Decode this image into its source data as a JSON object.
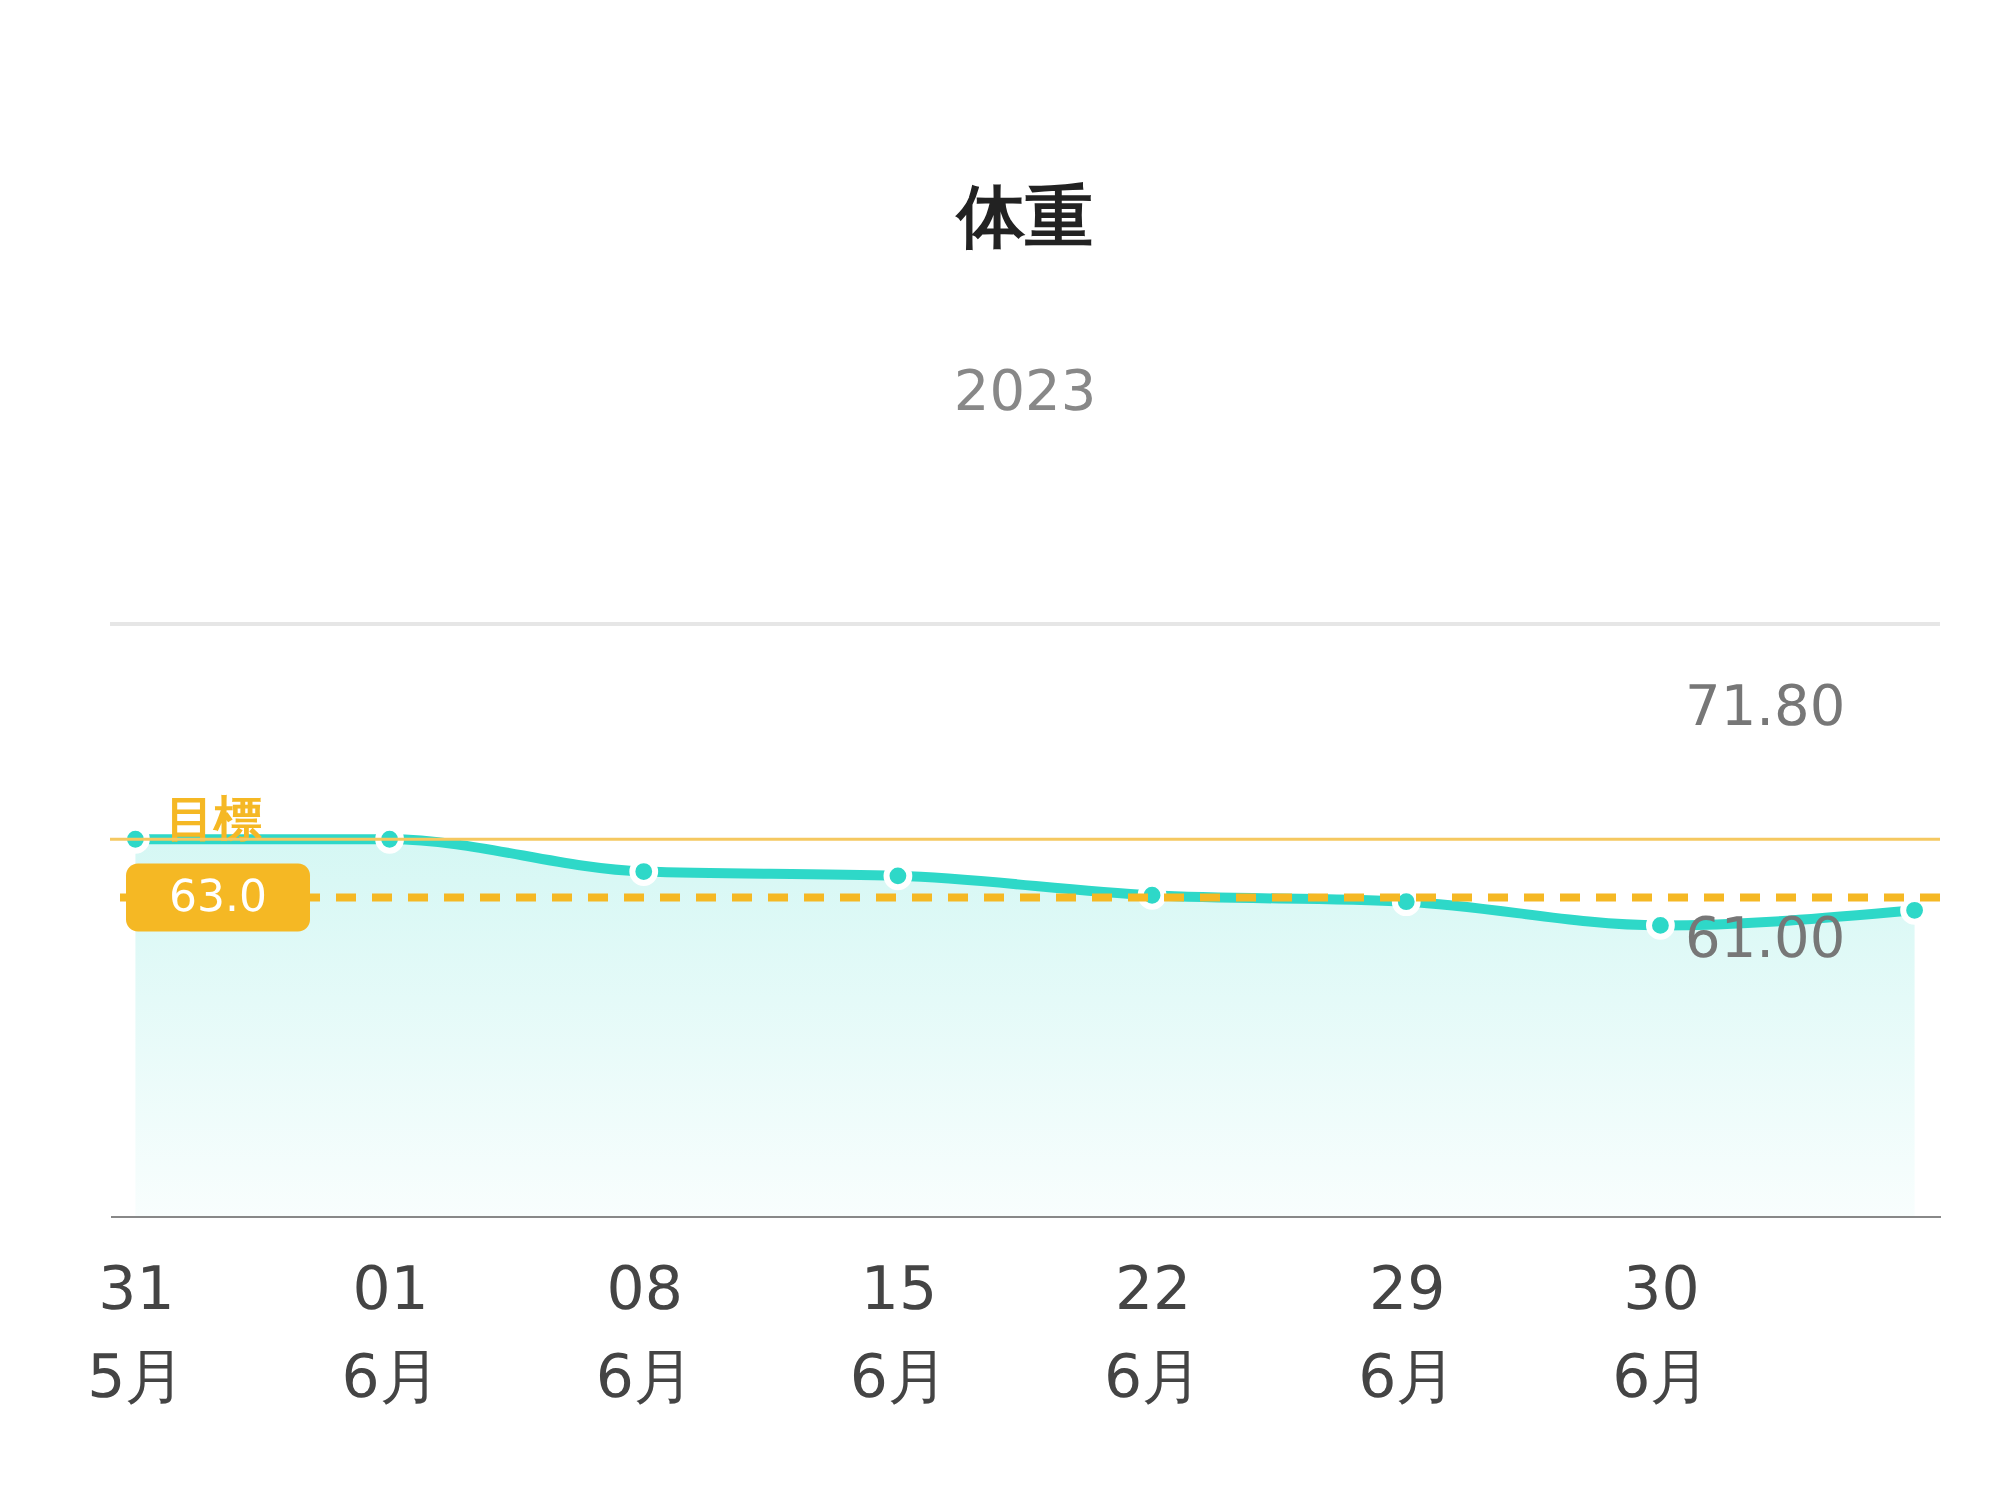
{
  "chart_data": {
    "type": "area",
    "title": "体重",
    "subtitle": "2023",
    "categories": [
      "31\n5月",
      "01\n6月",
      "08\n6月",
      "15\n6月",
      "22\n6月",
      "29\n6月",
      "30\n6月",
      null
    ],
    "series": [
      {
        "color": "#2ed8c8",
        "values": [
          65.7,
          65.7,
          64.2,
          64.0,
          63.1,
          62.8,
          61.7,
          62.4
        ]
      }
    ],
    "ylim": [
      48.2,
      75.7
    ],
    "yticks": [
      {
        "value": 71.8,
        "label": "71.80"
      },
      {
        "value": 61.0,
        "label": "61.00"
      }
    ],
    "ref_lines": [
      {
        "axis": "y",
        "value": 63.0,
        "label": "目標",
        "color": "#f5b824",
        "line_style": "dashed"
      },
      {
        "axis": "y",
        "value": 65.7,
        "label": null,
        "color": "#f5c860",
        "line_style": "solid"
      }
    ],
    "annotations": [
      "63.0"
    ],
    "marker": "circle",
    "grid": false
  }
}
